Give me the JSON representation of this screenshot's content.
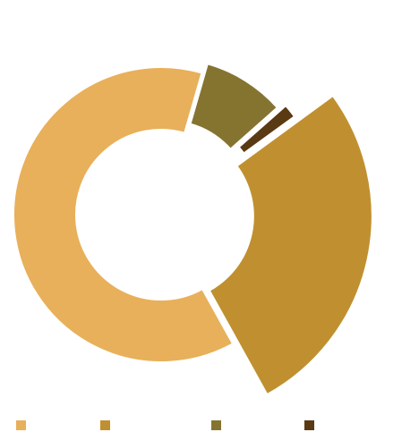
{
  "chart_data": {
    "type": "donut",
    "categories": [
      null,
      null,
      null,
      null
    ],
    "values": [
      62.5,
      27,
      9,
      1.5
    ],
    "colors": [
      "#e8b05a",
      "#c09030",
      "#857430",
      "#5a3a12"
    ]
  }
}
